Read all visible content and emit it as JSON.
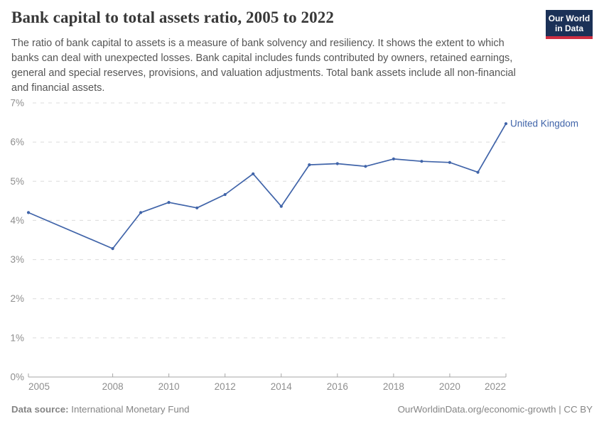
{
  "header": {
    "title": "Bank capital to total assets ratio, 2005 to 2022",
    "subtitle": "The ratio of bank capital to assets is a measure of bank solvency and resiliency. It shows the extent to which banks can deal with unexpected losses. Bank capital includes funds contributed by owners, retained earnings, general and special reserves, provisions, and valuation adjustments. Total bank assets include all non-financial and financial assets.",
    "logo": {
      "line1": "Our World",
      "line2": "in Data",
      "bg_color": "#1b3157",
      "stripe_color": "#cf2e41",
      "text_color": "#ffffff"
    }
  },
  "footer": {
    "source_label": "Data source:",
    "source_value": "International Monetary Fund",
    "attribution": "OurWorldinData.org/economic-growth | CC BY"
  },
  "chart_data": {
    "type": "line",
    "title": "Bank capital to total assets ratio, 2005 to 2022",
    "xlabel": "",
    "ylabel": "",
    "x_range": [
      2005,
      2022
    ],
    "y_range": [
      0,
      7
    ],
    "x_ticks": [
      2005,
      2008,
      2010,
      2012,
      2014,
      2016,
      2018,
      2020,
      2022
    ],
    "y_ticks": [
      0,
      1,
      2,
      3,
      4,
      5,
      6,
      7
    ],
    "y_tick_suffix": "%",
    "grid": "horizontal-dashed",
    "legend_position": "end-of-line-label",
    "series": [
      {
        "name": "United Kingdom",
        "color": "#4064a9",
        "points": [
          {
            "x": 2005,
            "y": 4.2
          },
          {
            "x": 2008,
            "y": 3.28
          },
          {
            "x": 2009,
            "y": 4.2
          },
          {
            "x": 2010,
            "y": 4.46
          },
          {
            "x": 2011,
            "y": 4.32
          },
          {
            "x": 2012,
            "y": 4.66
          },
          {
            "x": 2013,
            "y": 5.19
          },
          {
            "x": 2014,
            "y": 4.36
          },
          {
            "x": 2015,
            "y": 5.42
          },
          {
            "x": 2016,
            "y": 5.45
          },
          {
            "x": 2017,
            "y": 5.38
          },
          {
            "x": 2018,
            "y": 5.57
          },
          {
            "x": 2019,
            "y": 5.51
          },
          {
            "x": 2020,
            "y": 5.48
          },
          {
            "x": 2021,
            "y": 5.23
          },
          {
            "x": 2022,
            "y": 6.47
          }
        ]
      }
    ],
    "colors": {
      "grid": "#dcdcdc",
      "axis": "#a6a6a6",
      "tick_labels": "#8e8e8e"
    }
  }
}
